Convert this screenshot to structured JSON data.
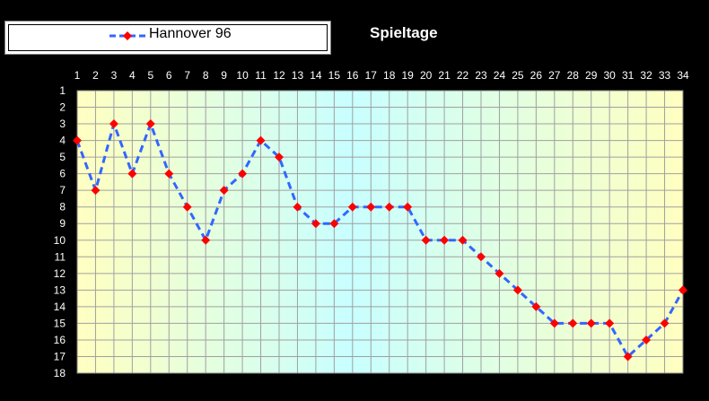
{
  "chart_data": {
    "type": "line",
    "title": "Spieltage",
    "xlabel": "",
    "ylabel": "",
    "x": [
      1,
      2,
      3,
      4,
      5,
      6,
      7,
      8,
      9,
      10,
      11,
      12,
      13,
      14,
      15,
      16,
      17,
      18,
      19,
      20,
      21,
      22,
      23,
      24,
      25,
      26,
      27,
      28,
      29,
      30,
      31,
      32,
      33,
      34
    ],
    "xlim": [
      1,
      34
    ],
    "ylim": [
      1,
      18
    ],
    "y_inverted": true,
    "y_ticks": [
      1,
      2,
      3,
      4,
      5,
      6,
      7,
      8,
      9,
      10,
      11,
      12,
      13,
      14,
      15,
      16,
      17,
      18
    ],
    "x_axis_position": "top",
    "grid": true,
    "legend_position": "top-left",
    "series": [
      {
        "name": "Hannover 96",
        "values": [
          4,
          7,
          3,
          6,
          3,
          6,
          8,
          10,
          7,
          6,
          4,
          5,
          8,
          9,
          9,
          8,
          8,
          8,
          8,
          10,
          10,
          10,
          11,
          12,
          13,
          14,
          15,
          15,
          15,
          15,
          17,
          16,
          15,
          13
        ],
        "line_color": "#3366ff",
        "line_style": "dashed",
        "marker": "diamond",
        "marker_color": "#ff0000"
      }
    ]
  },
  "colors": {
    "background": "#000000",
    "plot_gradient": [
      "#ffffc0",
      "#c8ffff",
      "#ffffc0"
    ],
    "grid": "#a0a0a0",
    "text": "#ffffff"
  }
}
